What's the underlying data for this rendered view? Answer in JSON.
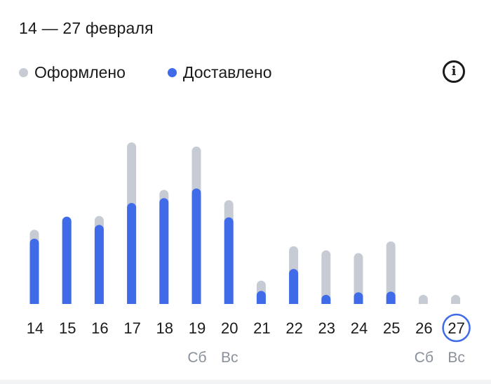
{
  "header": {
    "period": "14 — 27 февраля",
    "info_icon": "info-icon"
  },
  "legend": [
    {
      "label": "Оформлено",
      "color": "#c7ccd4"
    },
    {
      "label": "Доставлено",
      "color": "#3f6ae8"
    }
  ],
  "colors": {
    "ordered": "#c7ccd4",
    "delivered": "#3f6ae8",
    "selected_ring": "#3f6ae8",
    "weekday_text": "#8a9099"
  },
  "chart_data": {
    "type": "bar",
    "categories": [
      "14",
      "15",
      "16",
      "17",
      "18",
      "19",
      "20",
      "21",
      "22",
      "23",
      "24",
      "25",
      "26",
      "27"
    ],
    "weekday_labels": [
      "",
      "",
      "",
      "",
      "",
      "Сб",
      "Вс",
      "",
      "",
      "",
      "",
      "",
      "Сб",
      "Вс"
    ],
    "series": [
      {
        "name": "Оформлено",
        "values": [
          108,
          125,
          128,
          235,
          166,
          229,
          151,
          34,
          84,
          78,
          74,
          91,
          13,
          13
        ]
      },
      {
        "name": "Доставлено",
        "values": [
          95,
          127,
          115,
          147,
          154,
          168,
          126,
          19,
          51,
          13,
          17,
          18,
          0,
          0
        ]
      }
    ],
    "overlay": true,
    "selected_category": "27",
    "ylim": [
      0,
      240
    ],
    "grid": false,
    "legend_position": "top-left"
  }
}
